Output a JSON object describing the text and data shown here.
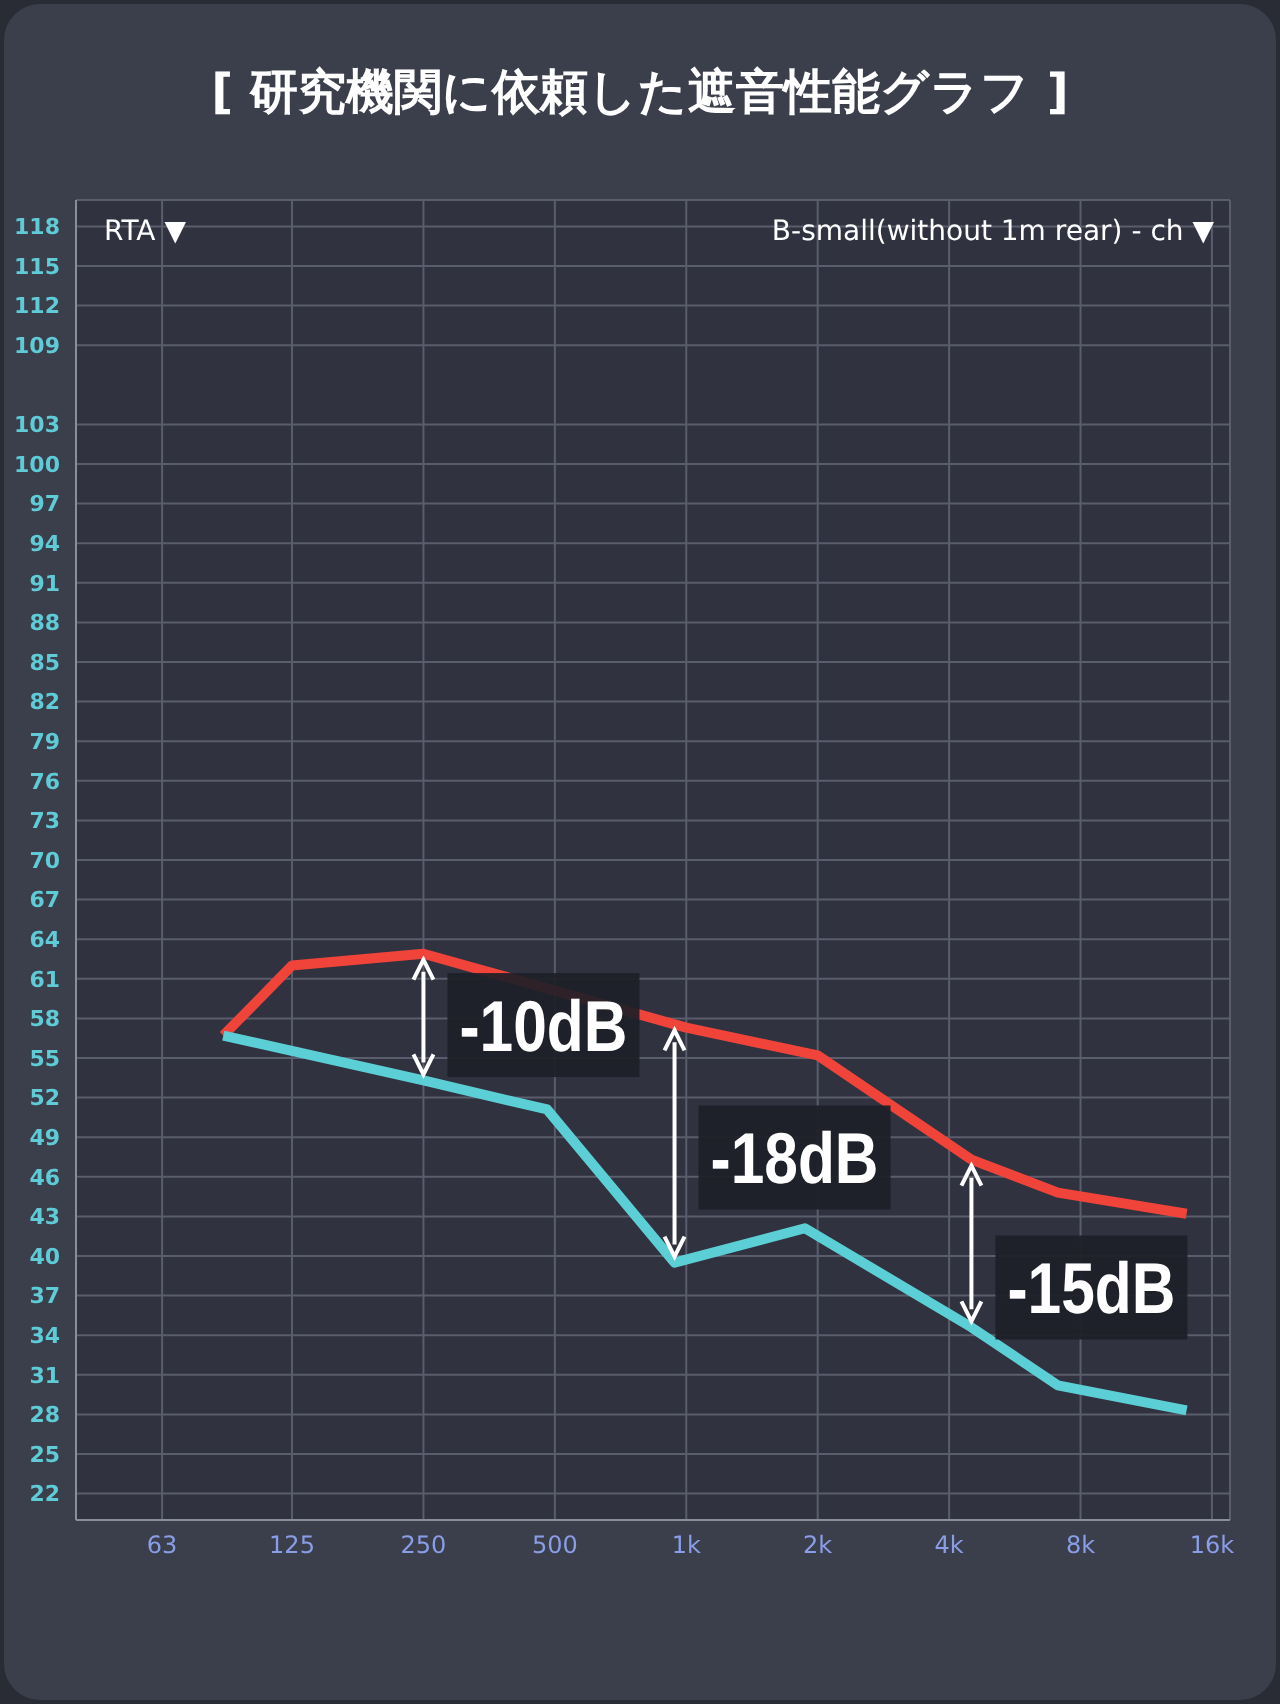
{
  "chart_data": {
    "type": "line",
    "title": "[ 研究機関に依頼した遮音性能グラフ ]",
    "annotations": [
      "RTA ▼",
      "B-small(without 1m rear) - ch ▼",
      {
        "text": "-10dB",
        "x": 250,
        "y": 62.9
      },
      {
        "text": "-18dB",
        "x": 940,
        "y": 39.5
      },
      {
        "text": "-15dB",
        "x": 4500,
        "y": 47.3
      }
    ],
    "series": [
      {
        "color": "#f0443a",
        "x": [
          87,
          125,
          250,
          1000,
          2000,
          4500,
          7100,
          14000
        ],
        "values": [
          56.7,
          62.0,
          62.9,
          57.3,
          55.2,
          47.3,
          44.8,
          43.2
        ]
      },
      {
        "color": "#5ccfd6",
        "x": [
          87,
          250,
          480,
          940,
          1870,
          4500,
          7100,
          14000
        ],
        "values": [
          56.7,
          53.3,
          51.1,
          39.5,
          42.1,
          34.6,
          30.2,
          28.3
        ]
      }
    ],
    "log": "x",
    "xlim": [
      40,
      17600
    ],
    "xticks": [
      63,
      125,
      250,
      500,
      {
        "value": 1000,
        "label": "1k"
      },
      {
        "value": 2000,
        "label": "2k"
      },
      {
        "value": 4000,
        "label": "4k"
      },
      {
        "value": 8000,
        "label": "8k"
      },
      {
        "value": 16000,
        "label": "16k"
      }
    ],
    "ylim": [
      20,
      120
    ],
    "yticks": [
      118,
      115,
      112,
      109,
      103,
      100,
      97,
      94,
      91,
      88,
      85,
      82,
      79,
      76,
      73,
      70,
      67,
      64,
      61,
      58,
      55,
      52,
      49,
      46,
      43,
      40,
      37,
      34,
      31,
      28,
      25,
      22
    ],
    "grid": true,
    "marker": "none",
    "line_style": "solid"
  }
}
